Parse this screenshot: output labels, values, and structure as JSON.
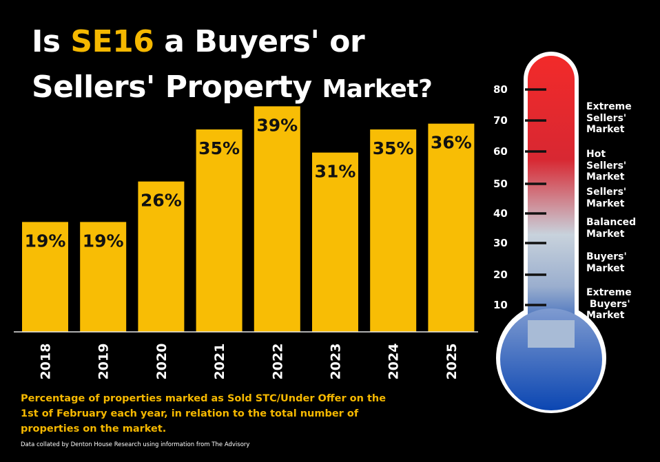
{
  "title": {
    "line1_prefix": "Is ",
    "line1_highlight": "SE16",
    "line1_suffix": " a Buyers' or",
    "line2_main": "Sellers' Property ",
    "line2_small": "Market?"
  },
  "chart_data": {
    "type": "bar",
    "categories": [
      "2018",
      "2019",
      "2020",
      "2021",
      "2022",
      "2023",
      "2024",
      "2025"
    ],
    "values": [
      19,
      19,
      26,
      35,
      39,
      31,
      35,
      36
    ],
    "value_labels": [
      "19%",
      "19%",
      "26%",
      "35%",
      "39%",
      "31%",
      "35%",
      "36%"
    ],
    "ylim": [
      0,
      50
    ],
    "grid": false,
    "colors": {
      "bar": "#f8bd05",
      "label": "#111111",
      "axis": "#e8e8e8"
    }
  },
  "caption": "Percentage of properties marked as Sold STC/Under Offer on the 1st of February each year, in relation to the total number of properties on the market.",
  "source": "Data collated by Denton House Research using information from The Advisory",
  "thermometer": {
    "scale": [
      "80",
      "70",
      "60",
      "50",
      "40",
      "30",
      "20",
      "10"
    ],
    "zones": [
      "Extreme\nSellers'\nMarket",
      "Hot\nSellers'\nMarket",
      "Sellers'\nMarket",
      "Balanced\nMarket",
      "Buyers'\nMarket",
      "Extreme\n Buyers'\nMarket"
    ],
    "colors": {
      "top": "#f22a2a",
      "middle": "#c8d2dc",
      "bottom": "#0b46b2",
      "outline": "#ffffff"
    }
  }
}
